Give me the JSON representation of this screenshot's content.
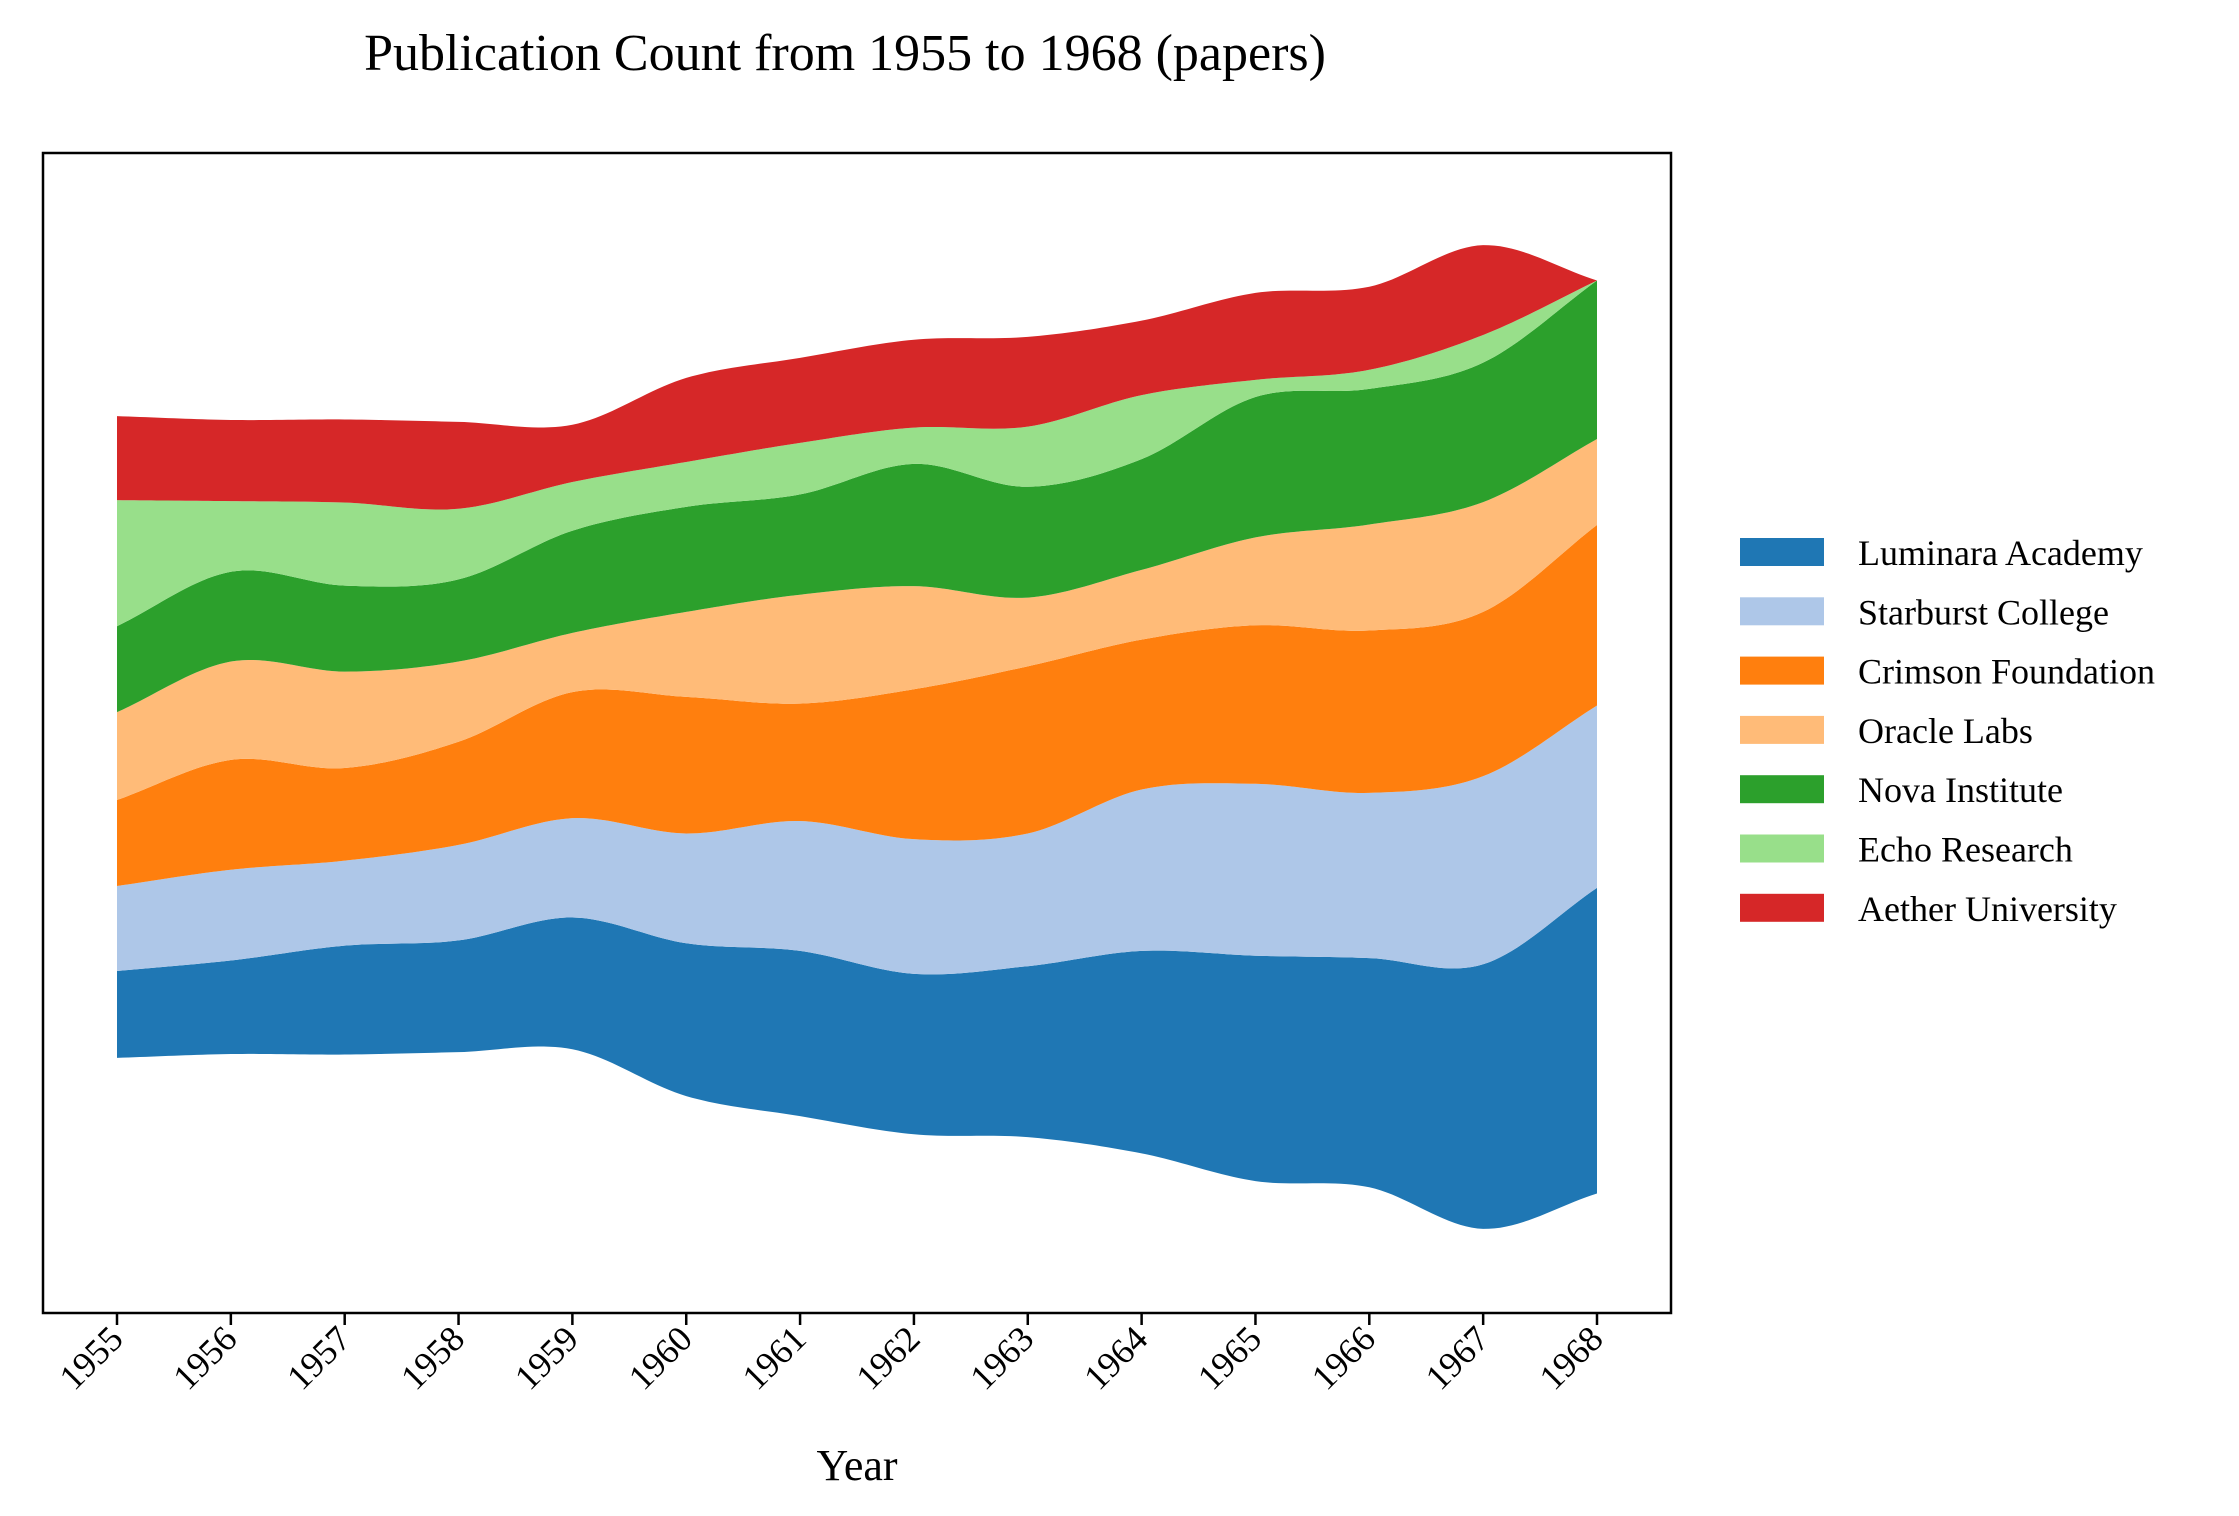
{
  "chart_data": {
    "type": "area",
    "subtype": "streamgraph",
    "title": "Publication Count from 1955 to 1968 (papers)",
    "xlabel": "Year",
    "ylabel": "",
    "y_ticks_visible": false,
    "grid": false,
    "legend_position": "right",
    "x": [
      "1955",
      "1956",
      "1957",
      "1958",
      "1959",
      "1960",
      "1961",
      "1962",
      "1963",
      "1964",
      "1965",
      "1966",
      "1967",
      "1968"
    ],
    "series": [
      {
        "name": "Luminara Academy",
        "color": "#1f77b4",
        "values": [
          91,
          98,
          114,
          117,
          138,
          160,
          173,
          168,
          179,
          212,
          236,
          240,
          277,
          320
        ]
      },
      {
        "name": "Starburst College",
        "color": "#aec7e8",
        "values": [
          89,
          95,
          89,
          100,
          104,
          115,
          136,
          141,
          139,
          169,
          180,
          173,
          197,
          191
        ]
      },
      {
        "name": "Crimson Foundation",
        "color": "#ff7f0e",
        "values": [
          90,
          115,
          97,
          108,
          132,
          143,
          123,
          157,
          175,
          157,
          166,
          170,
          172,
          189
        ]
      },
      {
        "name": "Oracle Labs",
        "color": "#ffbb78",
        "values": [
          92,
          103,
          101,
          84,
          62,
          89,
          114,
          108,
          72,
          73,
          92,
          111,
          115,
          90
        ]
      },
      {
        "name": "Nova Institute",
        "color": "#2ca02c",
        "values": [
          90,
          94,
          90,
          86,
          107,
          110,
          105,
          128,
          116,
          116,
          147,
          142,
          146,
          166
        ]
      },
      {
        "name": "Echo Research",
        "color": "#98df8a",
        "values": [
          132,
          74,
          87,
          74,
          51,
          47,
          54,
          38,
          63,
          67,
          18,
          20,
          29,
          0
        ]
      },
      {
        "name": "Aether University",
        "color": "#d62728",
        "values": [
          88,
          85,
          87,
          91,
          60,
          88,
          89,
          92,
          94,
          78,
          91,
          87,
          94,
          0
        ]
      }
    ]
  }
}
